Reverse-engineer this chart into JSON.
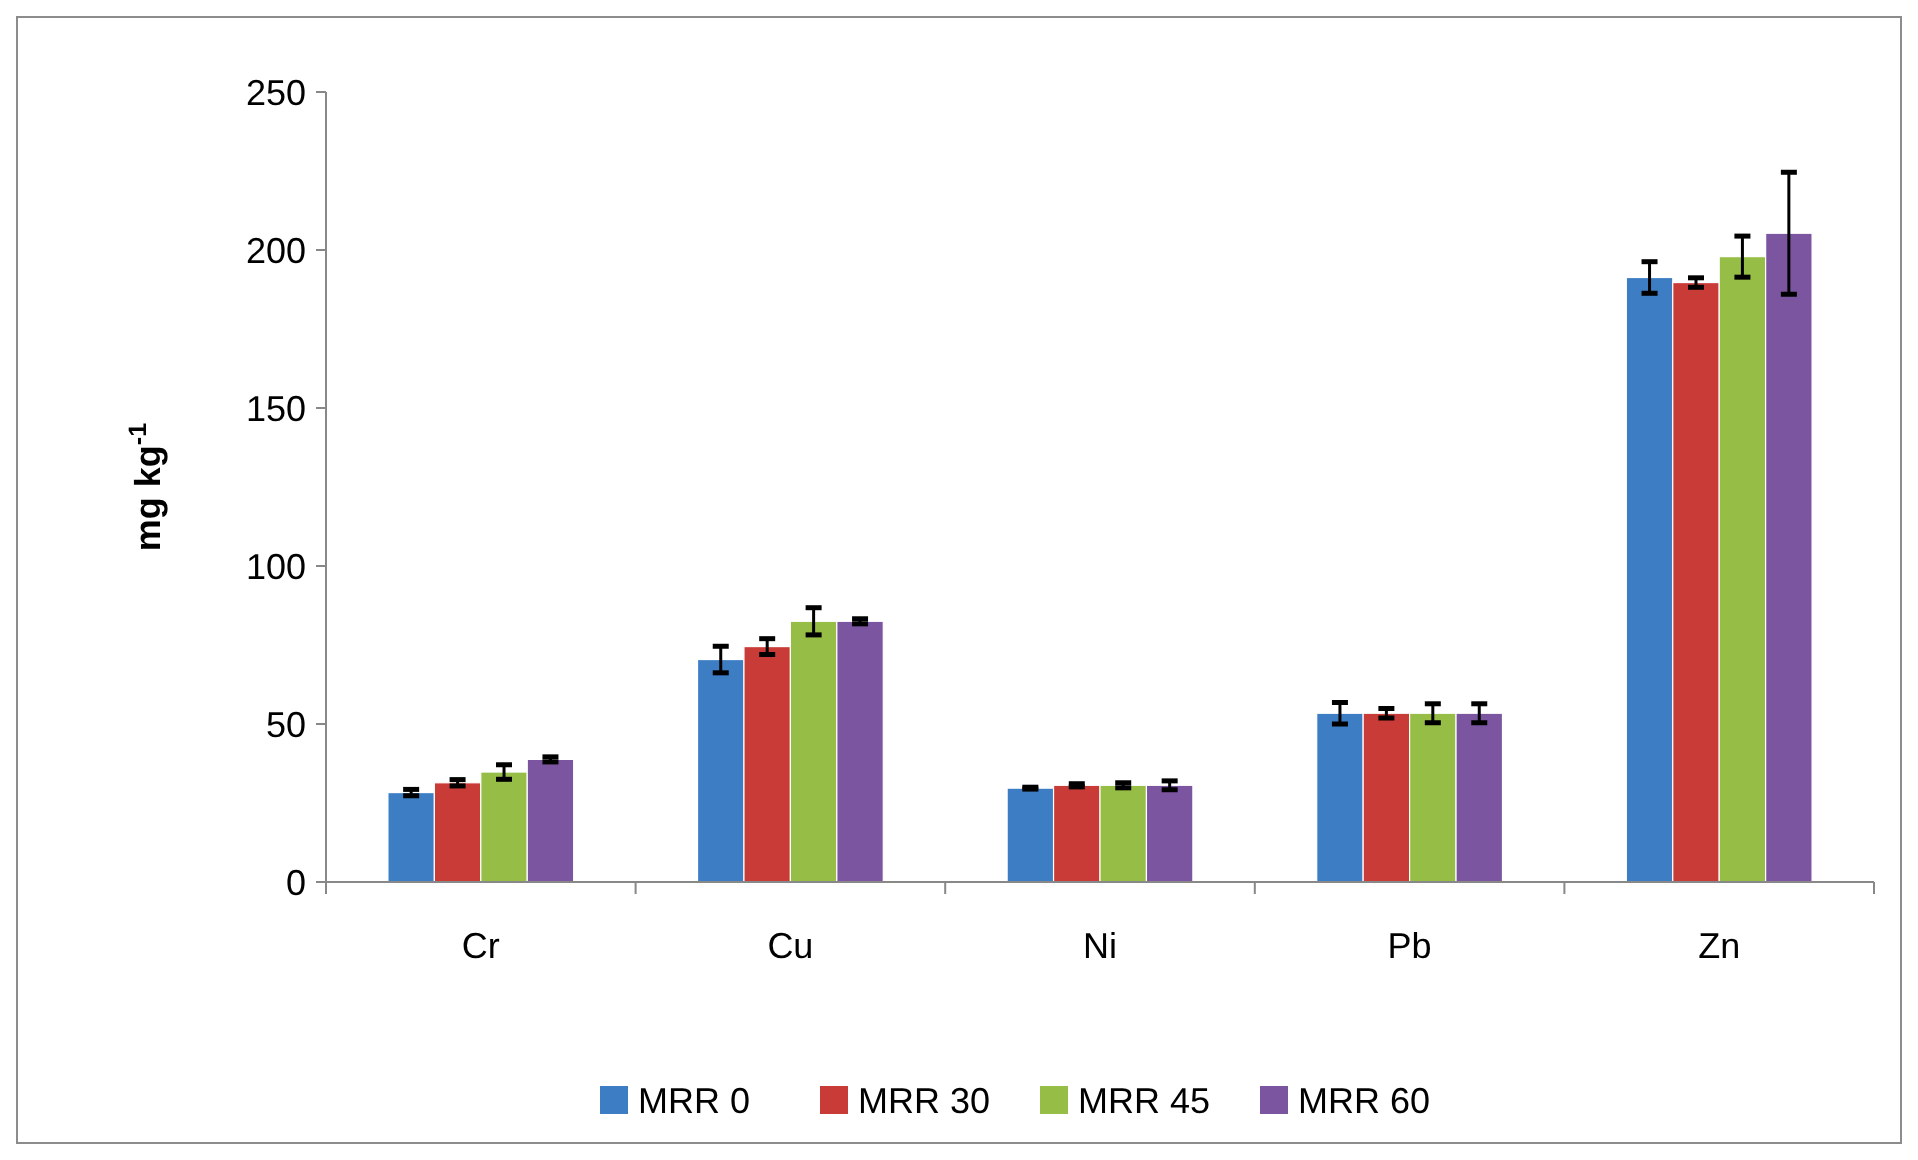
{
  "chart_data": {
    "type": "bar",
    "ylabel": "mg kg$^{-1}$",
    "categories": [
      "Cr",
      "Cu",
      "Ni",
      "Pb",
      "Zn"
    ],
    "series": [
      {
        "name": "MRR 0",
        "color": "#3c7dc4",
        "values": [
          28.3,
          70.4,
          29.7,
          53.4,
          191.3
        ],
        "errors": [
          1,
          4.2,
          0.3,
          3.4,
          5
        ]
      },
      {
        "name": "MRR 30",
        "color": "#c83b37",
        "values": [
          31.4,
          74.5,
          30.6,
          53.4,
          189.7
        ],
        "errors": [
          1,
          2.5,
          0.5,
          1.5,
          1.5
        ]
      },
      {
        "name": "MRR 45",
        "color": "#96bd45",
        "values": [
          34.8,
          82.5,
          30.6,
          53.4,
          197.9
        ],
        "errors": [
          2.3,
          4.3,
          0.8,
          3,
          6.5
        ]
      },
      {
        "name": "MRR 60",
        "color": "#7b55a0",
        "values": [
          38.8,
          82.5,
          30.6,
          53.4,
          205.3
        ],
        "errors": [
          0.8,
          0.8,
          1.4,
          3,
          19.3
        ]
      }
    ],
    "ylim": [
      0,
      250
    ],
    "yticks": [
      0,
      50,
      100,
      150,
      200,
      250
    ],
    "grid": false,
    "legend": "bottom"
  }
}
